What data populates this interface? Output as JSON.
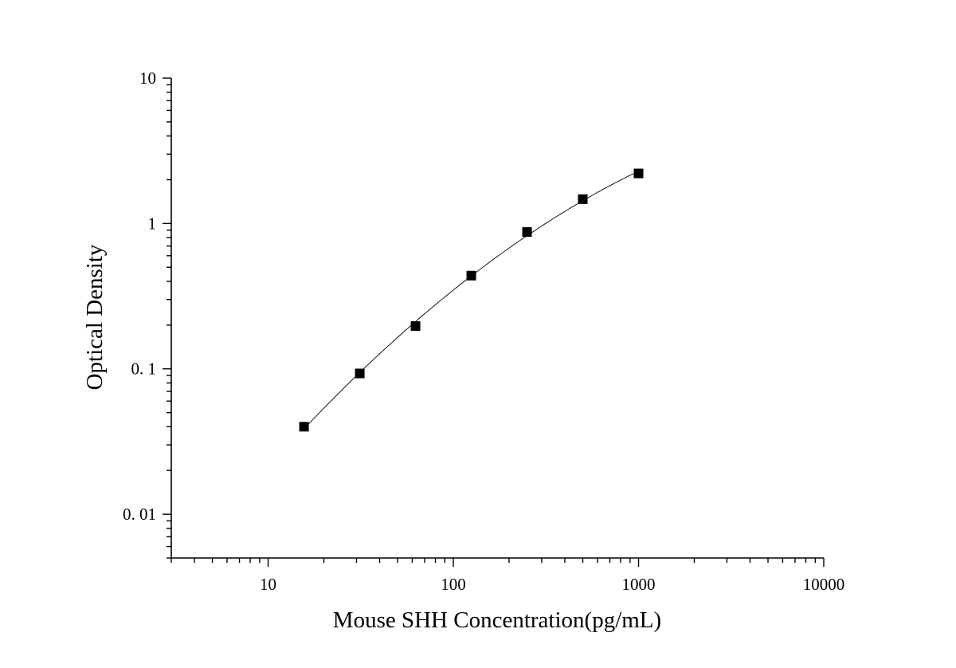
{
  "chart_data": {
    "type": "scatter",
    "title": "",
    "xlabel": "Mouse SHH Concentration(pg/mL)",
    "ylabel": "Optical Density",
    "x_scale": "log",
    "y_scale": "log",
    "xlim": [
      3,
      10000
    ],
    "ylim": [
      0.005,
      10
    ],
    "x_ticks": [
      {
        "value": 10,
        "label": "10"
      },
      {
        "value": 100,
        "label": "100"
      },
      {
        "value": 1000,
        "label": "1000"
      },
      {
        "value": 10000,
        "label": "10000"
      }
    ],
    "y_ticks": [
      {
        "value": 10,
        "label": "10"
      },
      {
        "value": 1,
        "label": "1"
      },
      {
        "value": 0.1,
        "label": "0. 1"
      },
      {
        "value": 0.01,
        "label": "0. 01"
      }
    ],
    "grid": false,
    "legend": "none",
    "marker": "square",
    "marker_color": "#000000",
    "fit_line": true,
    "series": [
      {
        "x": [
          15.625,
          31.25,
          62.5,
          125,
          250,
          500,
          1000
        ],
        "y": [
          0.04,
          0.093,
          0.197,
          0.438,
          0.874,
          1.47,
          2.21
        ]
      }
    ]
  }
}
